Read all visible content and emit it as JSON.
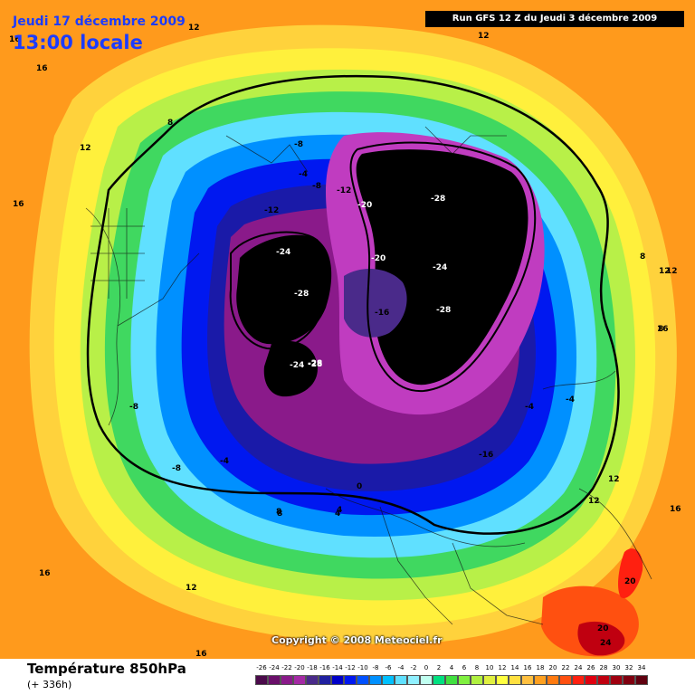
{
  "header": {
    "valid_date": "Jeudi 17 décembre 2009",
    "local_time": "13:00 locale",
    "run_info": "Run GFS 12 Z du Jeudi 3 décembre 2009"
  },
  "map": {
    "background_color": "#ff9a1c",
    "zero_contour_color": "#000000",
    "contour_labels": [
      "16",
      "12",
      "16",
      "8",
      "12",
      "16",
      "-8",
      "-4",
      "-8",
      "-12",
      "-20",
      "-28",
      "-16",
      "-4",
      "-12",
      "-12",
      "-24",
      "-20",
      "-24",
      "-28",
      "-16",
      "-28",
      "-28",
      "8",
      "12",
      "12",
      "8",
      "-4",
      "-24",
      "-28",
      "-8",
      "-4",
      "-8",
      "-4",
      "12",
      "-16",
      "16",
      "0",
      "4",
      "8",
      "16",
      "12",
      "20",
      "20",
      "24",
      "12",
      "16",
      "16",
      "12",
      "12",
      "8",
      "4"
    ]
  },
  "copyright": "Copyright © 2008 Meteociel.fr",
  "footer": {
    "title": "Température 850hPa",
    "subtitle": "(+ 336h)"
  },
  "legend": {
    "labels": [
      "-26",
      "-24",
      "-22",
      "-20",
      "-18",
      "-16",
      "-14",
      "-12",
      "-10",
      "-8",
      "-6",
      "-4",
      "-2",
      "0",
      "2",
      "4",
      "6",
      "8",
      "10",
      "12",
      "14",
      "16",
      "18",
      "20",
      "22",
      "24",
      "26",
      "28",
      "30",
      "32",
      "34"
    ],
    "colors": [
      "#4b0a4b",
      "#6a0f6a",
      "#8a1a8a",
      "#a52aa5",
      "#4a2a8a",
      "#2020a0",
      "#0000c8",
      "#0018f0",
      "#0050ff",
      "#0090ff",
      "#00c0ff",
      "#60e0ff",
      "#90f0ff",
      "#c0fff0",
      "#00e080",
      "#40e040",
      "#80f040",
      "#b0f040",
      "#e0f040",
      "#ffff40",
      "#ffe040",
      "#ffc040",
      "#ffa020",
      "#ff7a10",
      "#ff5010",
      "#ff2010",
      "#e00010",
      "#c00010",
      "#a00010",
      "#800010",
      "#600010"
    ]
  }
}
